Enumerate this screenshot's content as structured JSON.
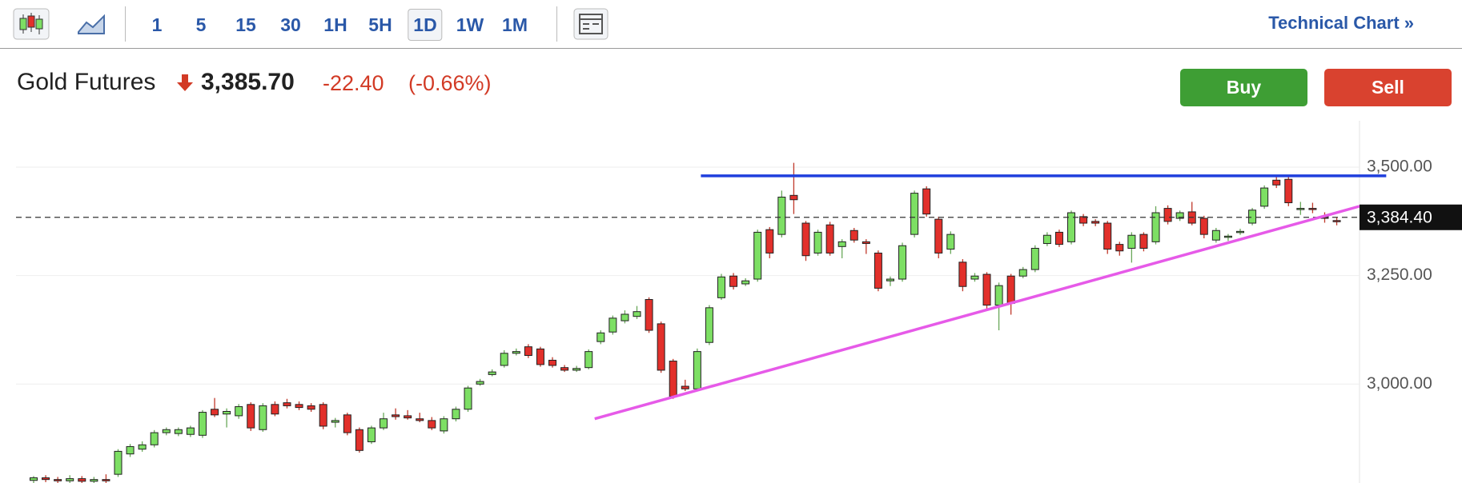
{
  "toolbar": {
    "intervals": [
      "1",
      "5",
      "15",
      "30",
      "1H",
      "5H",
      "1D",
      "1W",
      "1M"
    ],
    "selected_index": 6,
    "link": "Technical Chart »"
  },
  "header": {
    "name": "Gold Futures",
    "price": "3,385.70",
    "change": "-22.40",
    "change_pct": "(-0.66%)",
    "buy": "Buy",
    "sell": "Sell"
  },
  "chart_data": {
    "type": "candlestick",
    "ohlc": [
      [
        2778,
        2788,
        2772,
        2784
      ],
      [
        2784,
        2790,
        2774,
        2780
      ],
      [
        2780,
        2786,
        2770,
        2777
      ],
      [
        2777,
        2790,
        2772,
        2782
      ],
      [
        2782,
        2788,
        2770,
        2776
      ],
      [
        2776,
        2786,
        2770,
        2780
      ],
      [
        2780,
        2792,
        2772,
        2777
      ],
      [
        2792,
        2850,
        2786,
        2845
      ],
      [
        2839,
        2862,
        2832,
        2856
      ],
      [
        2850,
        2868,
        2844,
        2860
      ],
      [
        2860,
        2894,
        2854,
        2888
      ],
      [
        2888,
        2900,
        2882,
        2895
      ],
      [
        2886,
        2900,
        2880,
        2895
      ],
      [
        2884,
        2904,
        2878,
        2899
      ],
      [
        2882,
        2940,
        2876,
        2935
      ],
      [
        2942,
        2968,
        2924,
        2929
      ],
      [
        2931,
        2944,
        2900,
        2937
      ],
      [
        2927,
        2954,
        2920,
        2948
      ],
      [
        2953,
        2958,
        2892,
        2899
      ],
      [
        2895,
        2956,
        2890,
        2950
      ],
      [
        2953,
        2960,
        2926,
        2931
      ],
      [
        2957,
        2966,
        2944,
        2950
      ],
      [
        2953,
        2960,
        2940,
        2946
      ],
      [
        2950,
        2956,
        2936,
        2942
      ],
      [
        2953,
        2958,
        2896,
        2903
      ],
      [
        2912,
        2922,
        2900,
        2916
      ],
      [
        2929,
        2934,
        2882,
        2888
      ],
      [
        2895,
        2900,
        2842,
        2847
      ],
      [
        2867,
        2904,
        2862,
        2899
      ],
      [
        2899,
        2934,
        2894,
        2920
      ],
      [
        2929,
        2944,
        2918,
        2925
      ],
      [
        2927,
        2940,
        2918,
        2922
      ],
      [
        2920,
        2934,
        2912,
        2916
      ],
      [
        2916,
        2924,
        2894,
        2899
      ],
      [
        2892,
        2926,
        2886,
        2920
      ],
      [
        2920,
        2948,
        2914,
        2942
      ],
      [
        2942,
        2996,
        2936,
        2991
      ],
      [
        3000,
        3012,
        2996,
        3006
      ],
      [
        3022,
        3034,
        3018,
        3028
      ],
      [
        3043,
        3078,
        3038,
        3071
      ],
      [
        3071,
        3082,
        3066,
        3075
      ],
      [
        3086,
        3092,
        3060,
        3066
      ],
      [
        3081,
        3086,
        3040,
        3045
      ],
      [
        3055,
        3062,
        3038,
        3043
      ],
      [
        3038,
        3044,
        3028,
        3032
      ],
      [
        3032,
        3042,
        3028,
        3036
      ],
      [
        3038,
        3080,
        3034,
        3075
      ],
      [
        3098,
        3124,
        3092,
        3118
      ],
      [
        3120,
        3158,
        3114,
        3152
      ],
      [
        3146,
        3170,
        3140,
        3161
      ],
      [
        3156,
        3180,
        3150,
        3167
      ],
      [
        3195,
        3200,
        3118,
        3124
      ],
      [
        3139,
        3144,
        3026,
        3032
      ],
      [
        3053,
        3058,
        2966,
        2972
      ],
      [
        2995,
        3010,
        2984,
        2989
      ],
      [
        2989,
        3082,
        2984,
        3075
      ],
      [
        3096,
        3182,
        3090,
        3176
      ],
      [
        3199,
        3254,
        3194,
        3247
      ],
      [
        3249,
        3256,
        3218,
        3225
      ],
      [
        3231,
        3244,
        3226,
        3238
      ],
      [
        3242,
        3356,
        3236,
        3350
      ],
      [
        3356,
        3362,
        3290,
        3302
      ],
      [
        3345,
        3446,
        3338,
        3431
      ],
      [
        3435,
        3510,
        3392,
        3425
      ],
      [
        3371,
        3376,
        3284,
        3296
      ],
      [
        3302,
        3356,
        3296,
        3350
      ],
      [
        3367,
        3374,
        3296,
        3302
      ],
      [
        3317,
        3334,
        3290,
        3328
      ],
      [
        3354,
        3360,
        3326,
        3332
      ],
      [
        3328,
        3334,
        3300,
        3324
      ],
      [
        3302,
        3308,
        3214,
        3221
      ],
      [
        3238,
        3248,
        3226,
        3242
      ],
      [
        3242,
        3326,
        3236,
        3319
      ],
      [
        3345,
        3446,
        3338,
        3440
      ],
      [
        3450,
        3456,
        3386,
        3392
      ],
      [
        3380,
        3386,
        3290,
        3302
      ],
      [
        3311,
        3352,
        3300,
        3345
      ],
      [
        3281,
        3288,
        3214,
        3225
      ],
      [
        3242,
        3256,
        3236,
        3249
      ],
      [
        3253,
        3258,
        3170,
        3182
      ],
      [
        3182,
        3234,
        3124,
        3227
      ],
      [
        3249,
        3254,
        3160,
        3186
      ],
      [
        3249,
        3270,
        3244,
        3264
      ],
      [
        3264,
        3320,
        3258,
        3313
      ],
      [
        3324,
        3350,
        3318,
        3343
      ],
      [
        3350,
        3356,
        3316,
        3322
      ],
      [
        3328,
        3400,
        3322,
        3395
      ],
      [
        3386,
        3392,
        3364,
        3371
      ],
      [
        3375,
        3380,
        3364,
        3371
      ],
      [
        3371,
        3376,
        3300,
        3311
      ],
      [
        3322,
        3328,
        3296,
        3307
      ],
      [
        3313,
        3350,
        3280,
        3343
      ],
      [
        3345,
        3350,
        3306,
        3313
      ],
      [
        3328,
        3410,
        3322,
        3395
      ],
      [
        3405,
        3412,
        3368,
        3375
      ],
      [
        3382,
        3400,
        3376,
        3395
      ],
      [
        3397,
        3420,
        3366,
        3371
      ],
      [
        3382,
        3388,
        3336,
        3345
      ],
      [
        3332,
        3360,
        3326,
        3354
      ],
      [
        3339,
        3346,
        3330,
        3341
      ],
      [
        3350,
        3358,
        3344,
        3352
      ],
      [
        3371,
        3406,
        3366,
        3401
      ],
      [
        3410,
        3458,
        3404,
        3452
      ],
      [
        3470,
        3478,
        3452,
        3459
      ],
      [
        3472,
        3478,
        3410,
        3418
      ],
      [
        3403,
        3420,
        3390,
        3405
      ],
      [
        3405,
        3418,
        3394,
        3403
      ],
      [
        3386,
        3396,
        3372,
        3382
      ],
      [
        3377,
        3384,
        3366,
        3376
      ]
    ],
    "up_color": "#7ddf64",
    "down_color": "#e2302b",
    "ylim": [
      2772,
      3607
    ],
    "yticks": [
      {
        "value": 3000,
        "label": "3,000.00"
      },
      {
        "value": 3250,
        "label": "3,250.00"
      },
      {
        "value": 3500,
        "label": "3,500.00"
      }
    ],
    "grid": true,
    "last_price": {
      "value": 3384.4,
      "label": "3,384.40"
    },
    "trendlines": [
      {
        "color": "#1f3fdd",
        "points": [
          [
            55.3,
            3480
          ],
          [
            112.1,
            3480
          ]
        ]
      },
      {
        "color": "#e65ae8",
        "points": [
          [
            46.5,
            2920
          ],
          [
            109.9,
            3410
          ]
        ]
      }
    ]
  }
}
